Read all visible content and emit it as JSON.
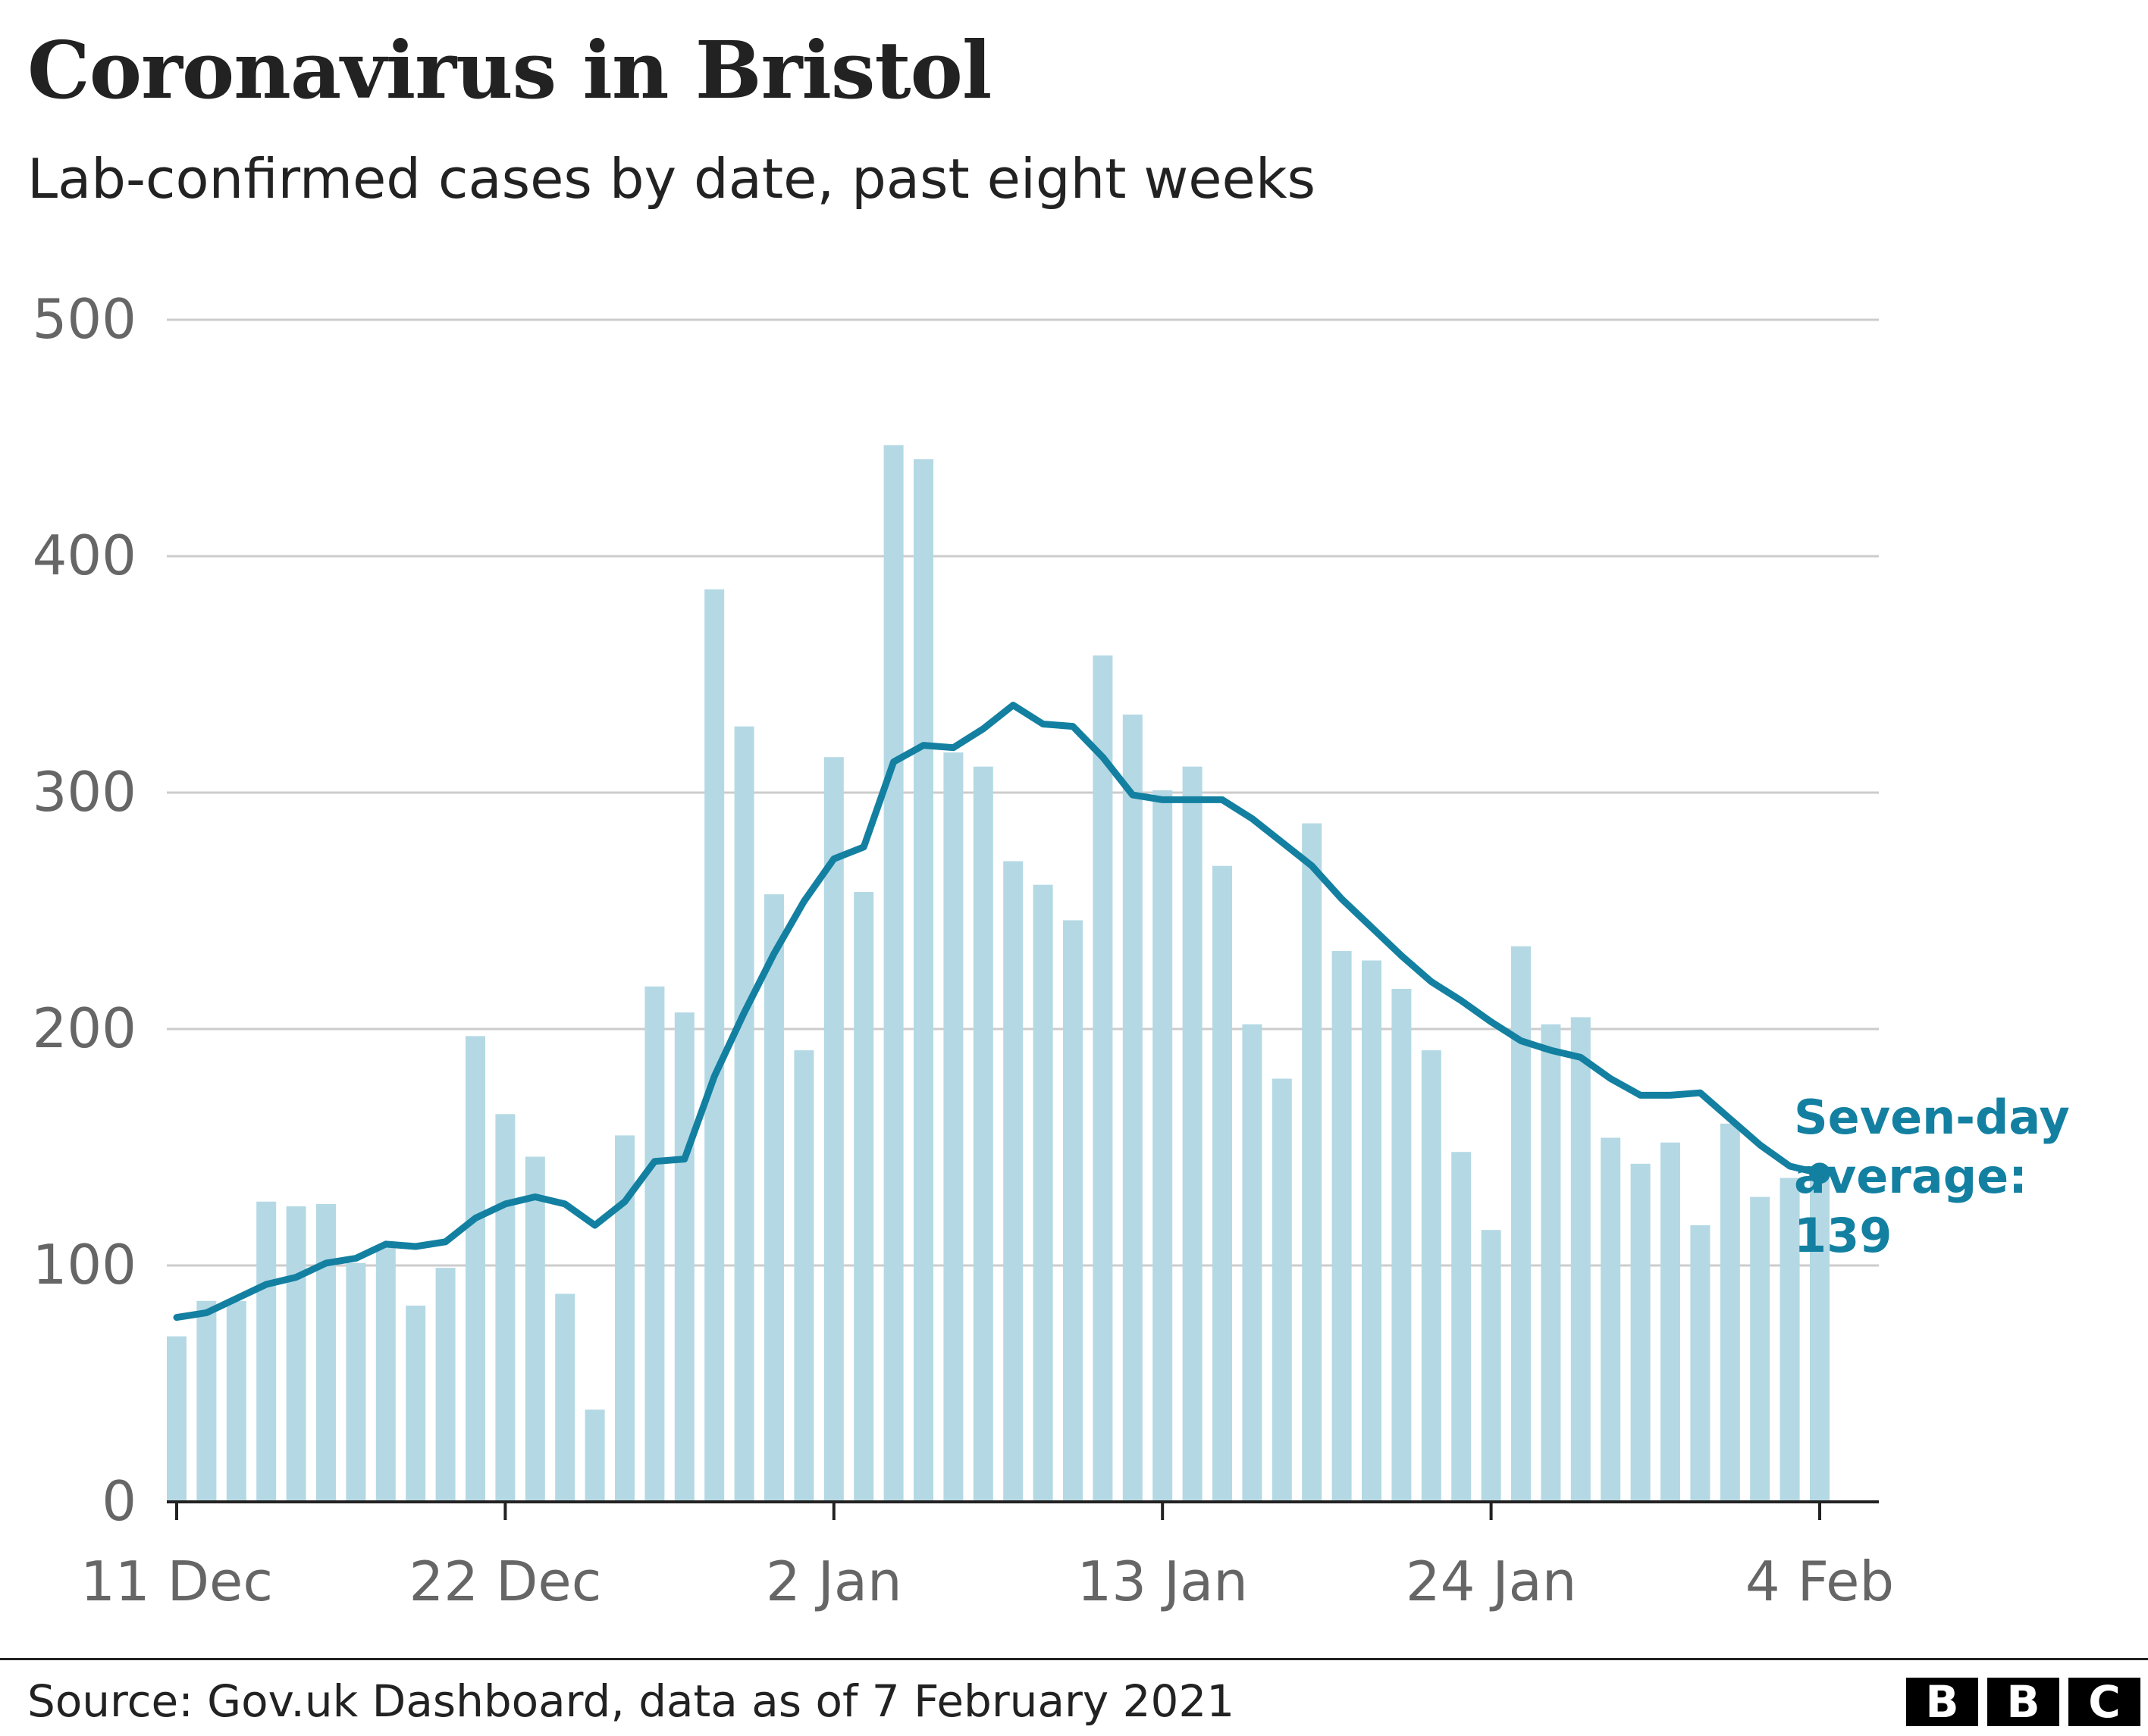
{
  "chart_data": {
    "type": "bar",
    "title": "Coronavirus in Bristol",
    "subtitle": "Lab-confirmed cases by date, past eight weeks",
    "x_tick_labels": [
      "11 Dec",
      "22 Dec",
      "2 Jan",
      "13 Jan",
      "24 Jan",
      "4 Feb"
    ],
    "x_tick_dates": [
      "2020-12-11",
      "2020-12-22",
      "2021-01-02",
      "2021-01-13",
      "2021-01-24",
      "2021-02-04"
    ],
    "x_range": [
      "2020-12-11",
      "2021-02-11"
    ],
    "y_ticks": [
      "0",
      "100",
      "200",
      "300",
      "400",
      "500"
    ],
    "ylim": [
      0,
      500
    ],
    "grid": true,
    "series": [
      {
        "kind": "bar",
        "color": "#b4d9e4",
        "x": [
          "2020-12-11",
          "2020-12-12",
          "2020-12-13",
          "2020-12-14",
          "2020-12-15",
          "2020-12-16",
          "2020-12-17",
          "2020-12-18",
          "2020-12-19",
          "2020-12-20",
          "2020-12-21",
          "2020-12-22",
          "2020-12-23",
          "2020-12-24",
          "2020-12-25",
          "2020-12-26",
          "2020-12-27",
          "2020-12-28",
          "2020-12-29",
          "2020-12-30",
          "2020-12-31",
          "2021-01-01",
          "2021-01-02",
          "2021-01-03",
          "2021-01-04",
          "2021-01-05",
          "2021-01-06",
          "2021-01-07",
          "2021-01-08",
          "2021-01-09",
          "2021-01-10",
          "2021-01-11",
          "2021-01-12",
          "2021-01-13",
          "2021-01-14",
          "2021-01-15",
          "2021-01-16",
          "2021-01-17",
          "2021-01-18",
          "2021-01-19",
          "2021-01-20",
          "2021-01-21",
          "2021-01-22",
          "2021-01-23",
          "2021-01-24",
          "2021-01-25",
          "2021-01-26",
          "2021-01-27",
          "2021-01-28",
          "2021-01-29",
          "2021-01-30",
          "2021-01-31",
          "2021-02-01",
          "2021-02-02",
          "2021-02-03",
          "2021-02-04"
        ],
        "values": [
          70,
          85,
          85,
          127,
          125,
          126,
          101,
          108,
          83,
          99,
          197,
          164,
          146,
          88,
          39,
          155,
          218,
          207,
          386,
          328,
          257,
          191,
          315,
          258,
          447,
          441,
          317,
          311,
          271,
          261,
          246,
          358,
          333,
          301,
          311,
          269,
          202,
          179,
          287,
          233,
          229,
          217,
          191,
          148,
          115,
          235,
          202,
          205,
          154,
          143,
          152,
          117,
          160,
          129,
          137,
          139
        ]
      },
      {
        "kind": "line",
        "name": "Seven-day average",
        "color": "#1380a1",
        "x": [
          "2020-12-11",
          "2020-12-12",
          "2020-12-13",
          "2020-12-14",
          "2020-12-15",
          "2020-12-16",
          "2020-12-17",
          "2020-12-18",
          "2020-12-19",
          "2020-12-20",
          "2020-12-21",
          "2020-12-22",
          "2020-12-23",
          "2020-12-24",
          "2020-12-25",
          "2020-12-26",
          "2020-12-27",
          "2020-12-28",
          "2020-12-29",
          "2020-12-30",
          "2020-12-31",
          "2021-01-01",
          "2021-01-02",
          "2021-01-03",
          "2021-01-04",
          "2021-01-05",
          "2021-01-06",
          "2021-01-07",
          "2021-01-08",
          "2021-01-09",
          "2021-01-10",
          "2021-01-11",
          "2021-01-12",
          "2021-01-13",
          "2021-01-14",
          "2021-01-15",
          "2021-01-16",
          "2021-01-17",
          "2021-01-18",
          "2021-01-19",
          "2021-01-20",
          "2021-01-21",
          "2021-01-22",
          "2021-01-23",
          "2021-01-24",
          "2021-01-25",
          "2021-01-26",
          "2021-01-27",
          "2021-01-28",
          "2021-01-29",
          "2021-01-30",
          "2021-01-31",
          "2021-02-01",
          "2021-02-02",
          "2021-02-03",
          "2021-02-04"
        ],
        "values": [
          78,
          80,
          86,
          92,
          95,
          101,
          103,
          109,
          108,
          110,
          120,
          126,
          129,
          126,
          117,
          127,
          144,
          145,
          180,
          207,
          232,
          254,
          272,
          277,
          313,
          320,
          319,
          327,
          337,
          329,
          328,
          315,
          299,
          297,
          297,
          297,
          289,
          279,
          269,
          255,
          243,
          231,
          220,
          212,
          203,
          195,
          191,
          188,
          179,
          172,
          172,
          173,
          162,
          151,
          142,
          139
        ]
      }
    ],
    "annotation": {
      "text_line1": "Seven-day",
      "text_line2": "average:",
      "value": "139"
    },
    "source": "Source: Gov.uk Dashboard, data as of 7 February 2021",
    "logo": [
      "B",
      "B",
      "C"
    ]
  }
}
